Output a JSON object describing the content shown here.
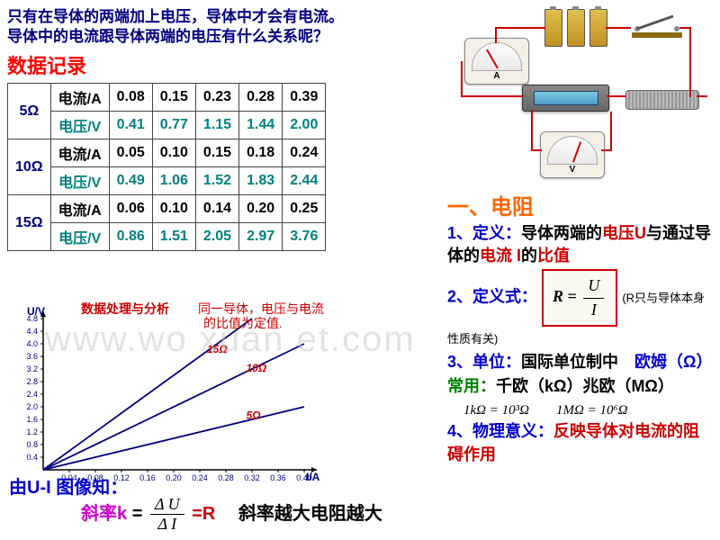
{
  "intro": {
    "line1": "只有在导体的两端加上电压，导体中才会有电流。",
    "line2": "导体中的电流跟导体两端的电压有什么关系呢？"
  },
  "data_title": "数据记录",
  "table": {
    "current_label": "电流/A",
    "voltage_label": "电压/V",
    "rows": [
      {
        "resistance": "5Ω",
        "current": [
          "0.08",
          "0.15",
          "0.23",
          "0.28",
          "0.39"
        ],
        "voltage": [
          "0.41",
          "0.77",
          "1.15",
          "1.44",
          "2.00"
        ]
      },
      {
        "resistance": "10Ω",
        "current": [
          "0.05",
          "0.10",
          "0.15",
          "0.18",
          "0.24"
        ],
        "voltage": [
          "0.49",
          "1.06",
          "1.52",
          "1.83",
          "2.44"
        ]
      },
      {
        "resistance": "15Ω",
        "current": [
          "0.06",
          "0.10",
          "0.14",
          "0.20",
          "0.25"
        ],
        "voltage": [
          "0.86",
          "1.51",
          "2.05",
          "2.97",
          "3.76"
        ]
      }
    ]
  },
  "circuit": {
    "ammeter_label": "A",
    "voltmeter_label": "V"
  },
  "right": {
    "header": "一、电阻",
    "def1_prefix": "1、定义：",
    "def1_text1": "导体两端的",
    "def1_u": "电压U",
    "def1_text2": "与通过导体的",
    "def1_i": "电流 I",
    "def1_text3": "的",
    "def1_ratio": "比值",
    "def2_prefix": "2、定义式：",
    "formula": {
      "lhs": "R",
      "eq": "=",
      "num": "U",
      "den": "I"
    },
    "def2_note": "(R只与导体本身性质有关)",
    "def3_prefix": "3、单位：",
    "def3_text1": "国际单位制中",
    "def3_ohm": "欧姆（Ω）",
    "def3_common_label": "常用：",
    "def3_common": "千欧（kΩ）兆欧（MΩ）",
    "unit_conv1": "1kΩ = 10³Ω",
    "unit_conv2": "1MΩ = 10⁶Ω",
    "def4_prefix": "4、物理意义：",
    "def4_text": "反映导体对电流的阻碍作用"
  },
  "chart": {
    "title": "数据处理与分析",
    "note": "同一导体，电压与电流的比值为定值.",
    "ylabel": "U/V",
    "xlabel": "I/A",
    "yticks": [
      "0.4",
      "0.8",
      "1.2",
      "1.6",
      "2.0",
      "2.4",
      "2.8",
      "3.2",
      "3.6",
      "4.0",
      "4.4",
      "4.8"
    ],
    "xticks": [
      "0.04",
      "0.08",
      "0.12",
      "0.16",
      "0.20",
      "0.24",
      "0.28",
      "0.32",
      "0.36",
      "0.40"
    ],
    "series": [
      {
        "label": "15Ω",
        "color": "#cc0000",
        "slope": 15
      },
      {
        "label": "10Ω",
        "color": "#cc0000",
        "slope": 10
      },
      {
        "label": "5Ω",
        "color": "#cc0000",
        "slope": 5
      }
    ],
    "line_color": "#000080",
    "axis_color": "#000"
  },
  "bottom": {
    "graph_label": "由U-I 图像知：",
    "slope_label": "斜率k",
    "eq": "=",
    "num": "Δ U",
    "den": "Δ I",
    "rhs": "=R",
    "conclusion": "斜率越大电阻越大"
  },
  "watermark": "www.wo  xuan  et.com"
}
